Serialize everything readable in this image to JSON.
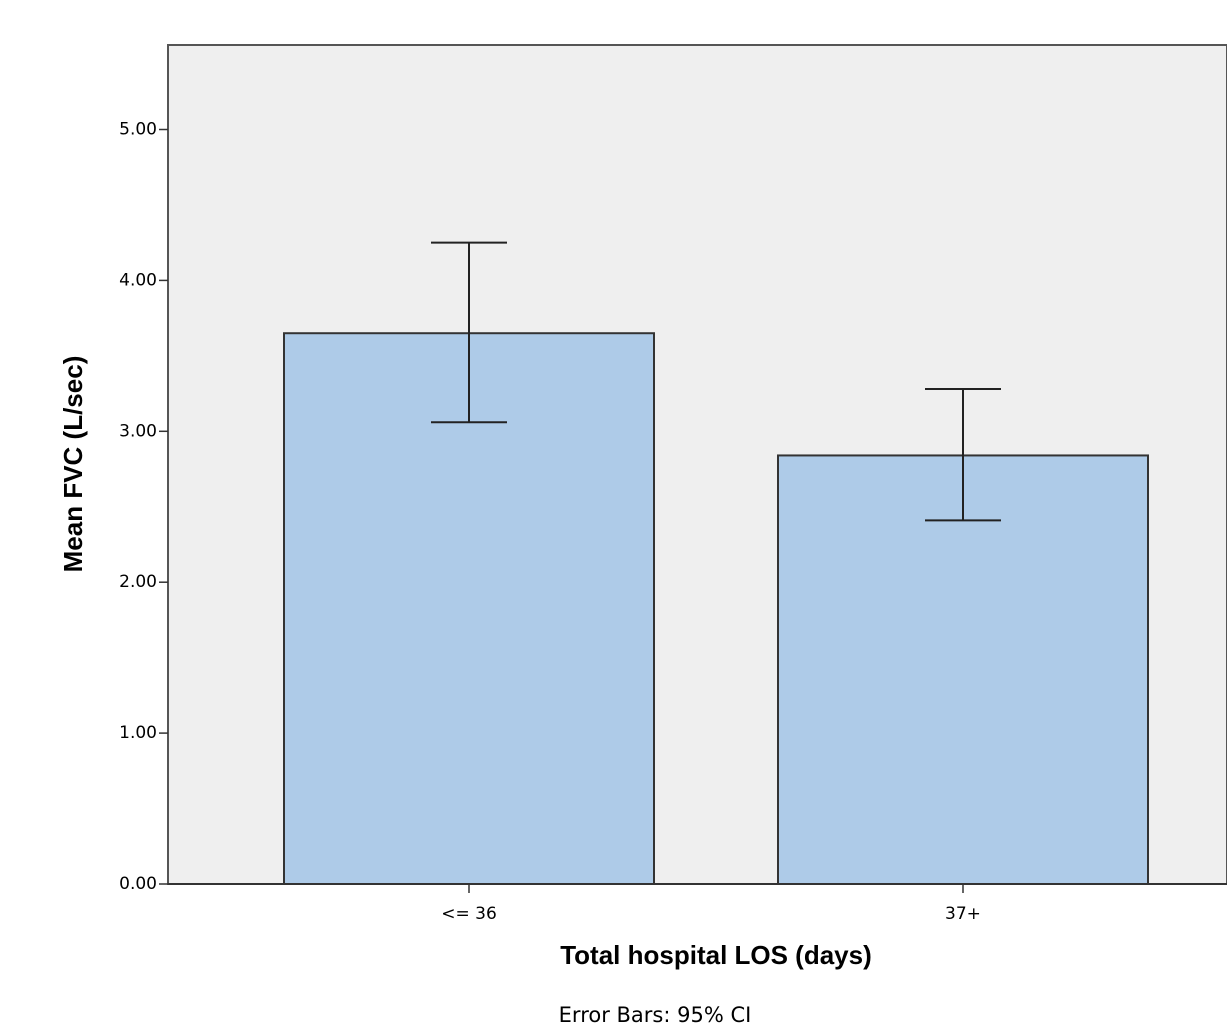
{
  "chart_data": {
    "type": "bar",
    "x_label": "Total hospital LOS (days)",
    "y_label": "Mean FVC (L/sec)",
    "note": "Error Bars: 95% CI",
    "categories": [
      "<= 36",
      "37+"
    ],
    "values": [
      3.65,
      2.84
    ],
    "ci_lower": [
      3.06,
      2.41
    ],
    "ci_upper": [
      4.25,
      3.28
    ],
    "color": "#aecbe8",
    "ylim": [
      0,
      5.56
    ],
    "yticks": [
      {
        "value": 0,
        "label": "0.00"
      },
      {
        "value": 1,
        "label": "1.00"
      },
      {
        "value": 2,
        "label": "2.00"
      },
      {
        "value": 3,
        "label": "3.00"
      },
      {
        "value": 4,
        "label": "4.00"
      },
      {
        "value": 5,
        "label": "5.00"
      }
    ],
    "grid": false
  }
}
